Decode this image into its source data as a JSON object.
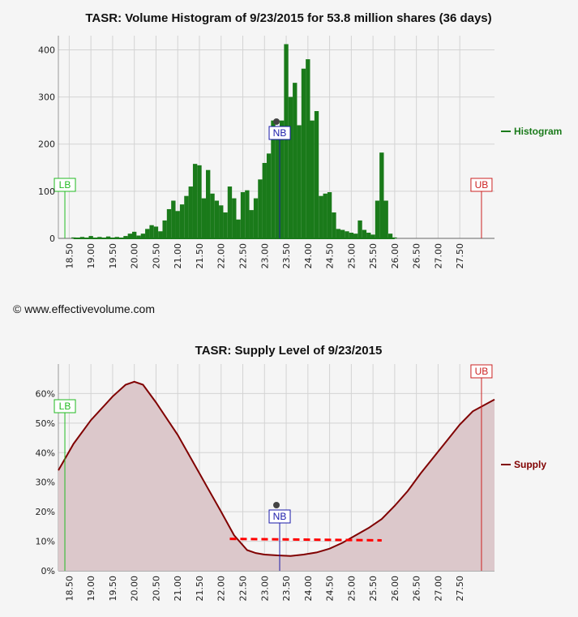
{
  "copyright": "© www.effectivevolume.com",
  "chart_data": [
    {
      "type": "bar",
      "title": "TASR: Volume Histogram of 9/23/2015 for 53.8 million shares (36 days)",
      "xlim": [
        18.25,
        28.3
      ],
      "ylim": [
        0,
        430
      ],
      "x_ticks": [
        "18.50",
        "19.00",
        "19.50",
        "20.00",
        "20.50",
        "21.00",
        "21.50",
        "22.00",
        "22.50",
        "23.00",
        "23.50",
        "24.00",
        "24.50",
        "25.00",
        "25.50",
        "26.00",
        "26.50",
        "27.00",
        "27.50"
      ],
      "y_ticks": [
        "0",
        "100",
        "200",
        "300",
        "400"
      ],
      "series": [
        {
          "name": "Histogram",
          "color": "#1a7a1a",
          "points": [
            [
              18.6,
              2
            ],
            [
              18.8,
              3
            ],
            [
              19.0,
              5
            ],
            [
              19.2,
              3
            ],
            [
              19.4,
              4
            ],
            [
              19.6,
              3
            ],
            [
              19.8,
              5
            ],
            [
              19.9,
              10
            ],
            [
              20.0,
              14
            ],
            [
              20.1,
              6
            ],
            [
              20.2,
              10
            ],
            [
              20.3,
              20
            ],
            [
              20.4,
              28
            ],
            [
              20.5,
              25
            ],
            [
              20.6,
              15
            ],
            [
              20.7,
              38
            ],
            [
              20.8,
              62
            ],
            [
              20.9,
              80
            ],
            [
              21.0,
              58
            ],
            [
              21.1,
              72
            ],
            [
              21.2,
              90
            ],
            [
              21.3,
              110
            ],
            [
              21.4,
              158
            ],
            [
              21.5,
              155
            ],
            [
              21.6,
              85
            ],
            [
              21.7,
              145
            ],
            [
              21.8,
              95
            ],
            [
              21.9,
              80
            ],
            [
              22.0,
              70
            ],
            [
              22.1,
              55
            ],
            [
              22.2,
              110
            ],
            [
              22.3,
              85
            ],
            [
              22.4,
              40
            ],
            [
              22.5,
              98
            ],
            [
              22.6,
              102
            ],
            [
              22.7,
              60
            ],
            [
              22.8,
              85
            ],
            [
              22.9,
              125
            ],
            [
              23.0,
              160
            ],
            [
              23.1,
              180
            ],
            [
              23.2,
              250
            ],
            [
              23.3,
              235
            ],
            [
              23.4,
              250
            ],
            [
              23.5,
              412
            ],
            [
              23.6,
              300
            ],
            [
              23.7,
              330
            ],
            [
              23.8,
              240
            ],
            [
              23.9,
              360
            ],
            [
              24.0,
              380
            ],
            [
              24.1,
              250
            ],
            [
              24.2,
              270
            ],
            [
              24.3,
              90
            ],
            [
              24.4,
              95
            ],
            [
              24.5,
              98
            ],
            [
              24.6,
              55
            ],
            [
              24.7,
              20
            ],
            [
              24.8,
              18
            ],
            [
              24.9,
              15
            ],
            [
              25.0,
              12
            ],
            [
              25.1,
              10
            ],
            [
              25.2,
              38
            ],
            [
              25.3,
              18
            ],
            [
              25.4,
              12
            ],
            [
              25.5,
              8
            ],
            [
              25.6,
              80
            ],
            [
              25.7,
              182
            ],
            [
              25.8,
              80
            ],
            [
              25.9,
              10
            ],
            [
              26.0,
              2
            ]
          ]
        }
      ],
      "markers": [
        {
          "label": "LB",
          "x": 18.4,
          "color": "#22bb22"
        },
        {
          "label": "NB",
          "x": 23.35,
          "color": "#1a1aaa"
        },
        {
          "label": "UB",
          "x": 28.0,
          "color": "#cc2222"
        }
      ]
    },
    {
      "type": "area",
      "title": "TASR: Supply Level of 9/23/2015",
      "xlim": [
        18.25,
        28.3
      ],
      "ylim": [
        0,
        70
      ],
      "x_ticks": [
        "18.50",
        "19.00",
        "19.50",
        "20.00",
        "20.50",
        "21.00",
        "21.50",
        "22.00",
        "22.50",
        "23.00",
        "23.50",
        "24.00",
        "24.50",
        "25.00",
        "25.50",
        "26.00",
        "26.50",
        "27.00",
        "27.50"
      ],
      "y_ticks": [
        "0%",
        "10%",
        "20%",
        "30%",
        "40%",
        "50%",
        "60%"
      ],
      "series": [
        {
          "name": "Supply",
          "color": "#800000",
          "fill": "#dcc8cb",
          "points": [
            [
              18.25,
              34
            ],
            [
              18.6,
              43
            ],
            [
              19.0,
              51
            ],
            [
              19.5,
              59
            ],
            [
              19.8,
              63
            ],
            [
              20.0,
              64
            ],
            [
              20.2,
              63
            ],
            [
              20.5,
              57
            ],
            [
              21.0,
              46
            ],
            [
              21.5,
              33
            ],
            [
              22.0,
              20
            ],
            [
              22.3,
              12
            ],
            [
              22.6,
              7
            ],
            [
              22.8,
              6
            ],
            [
              23.0,
              5.5
            ],
            [
              23.3,
              5.2
            ],
            [
              23.6,
              5
            ],
            [
              23.9,
              5.5
            ],
            [
              24.2,
              6.2
            ],
            [
              24.5,
              7.5
            ],
            [
              24.8,
              9.5
            ],
            [
              25.1,
              12
            ],
            [
              25.4,
              14.5
            ],
            [
              25.7,
              17.5
            ],
            [
              26.0,
              22
            ],
            [
              26.3,
              27
            ],
            [
              26.6,
              33
            ],
            [
              26.9,
              38.5
            ],
            [
              27.2,
              44
            ],
            [
              27.5,
              49.5
            ],
            [
              27.8,
              54
            ],
            [
              28.3,
              58
            ]
          ]
        }
      ],
      "reference_line": {
        "x1": 22.2,
        "x2": 25.7,
        "y1": 10.8,
        "y2": 10.3,
        "color": "#ff0000"
      },
      "markers": [
        {
          "label": "LB",
          "x": 18.4,
          "color": "#22bb22"
        },
        {
          "label": "NB",
          "x": 23.35,
          "color": "#1a1aaa"
        },
        {
          "label": "UB",
          "x": 28.0,
          "color": "#cc2222"
        }
      ]
    }
  ]
}
